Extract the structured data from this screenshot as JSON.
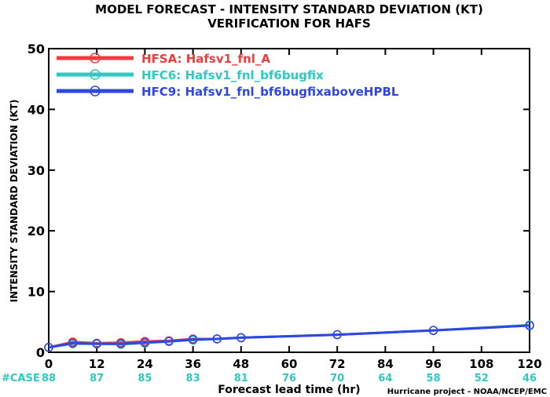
{
  "chart_data": {
    "type": "line",
    "title": "MODEL FORECAST - INTENSITY STANDARD DEVIATION (KT)",
    "subtitle": "VERIFICATION FOR HAFS",
    "xlabel": "Forecast lead time (hr)",
    "ylabel": "INTENSITY STANDARD DEVIATION (KT)",
    "xlim": [
      0,
      120
    ],
    "ylim": [
      0,
      50
    ],
    "x_ticks": [
      0,
      12,
      24,
      36,
      48,
      60,
      72,
      84,
      96,
      108,
      120
    ],
    "y_ticks": [
      0,
      10,
      20,
      30,
      40,
      50
    ],
    "grid": false,
    "legend_position": "top-left",
    "series": [
      {
        "name": "HFSA: Hafsv1_fnl_A",
        "color": "#f03c3c",
        "x": [
          0,
          6,
          12,
          18,
          24,
          30,
          36,
          42,
          48,
          72,
          96,
          120
        ],
        "values": [
          0.8,
          1.7,
          1.5,
          1.6,
          1.8,
          1.9,
          2.2,
          2.2,
          2.4,
          2.9,
          3.6,
          4.4
        ]
      },
      {
        "name": "HFC6: Hafsv1_fnl_bf6bugfix",
        "color": "#2ec9c0",
        "x": [
          0,
          6,
          12,
          18,
          24,
          30,
          36,
          42,
          48,
          72,
          96,
          120
        ],
        "values": [
          0.8,
          1.4,
          1.4,
          1.3,
          1.5,
          1.8,
          2.0,
          2.2,
          2.4,
          2.9,
          3.6,
          4.5
        ]
      },
      {
        "name": "HFC9: Hafsv1_fnl_bf6bugfixaboveHPBL",
        "color": "#2e46e6",
        "x": [
          0,
          6,
          12,
          18,
          24,
          30,
          36,
          42,
          48,
          72,
          96,
          120
        ],
        "values": [
          0.8,
          1.5,
          1.4,
          1.4,
          1.6,
          1.8,
          2.1,
          2.2,
          2.4,
          2.9,
          3.6,
          4.4
        ]
      }
    ],
    "case_label": "#CASE",
    "case_color": "#2ec9c0",
    "cases": [
      {
        "x": 0,
        "n": "88"
      },
      {
        "x": 12,
        "n": "87"
      },
      {
        "x": 24,
        "n": "85"
      },
      {
        "x": 36,
        "n": "83"
      },
      {
        "x": 48,
        "n": "81"
      },
      {
        "x": 60,
        "n": "76"
      },
      {
        "x": 72,
        "n": "70"
      },
      {
        "x": 84,
        "n": "64"
      },
      {
        "x": 96,
        "n": "58"
      },
      {
        "x": 108,
        "n": "52"
      },
      {
        "x": 120,
        "n": "46"
      }
    ],
    "credit": "Hurricane project - NOAA/NCEP/EMC"
  }
}
